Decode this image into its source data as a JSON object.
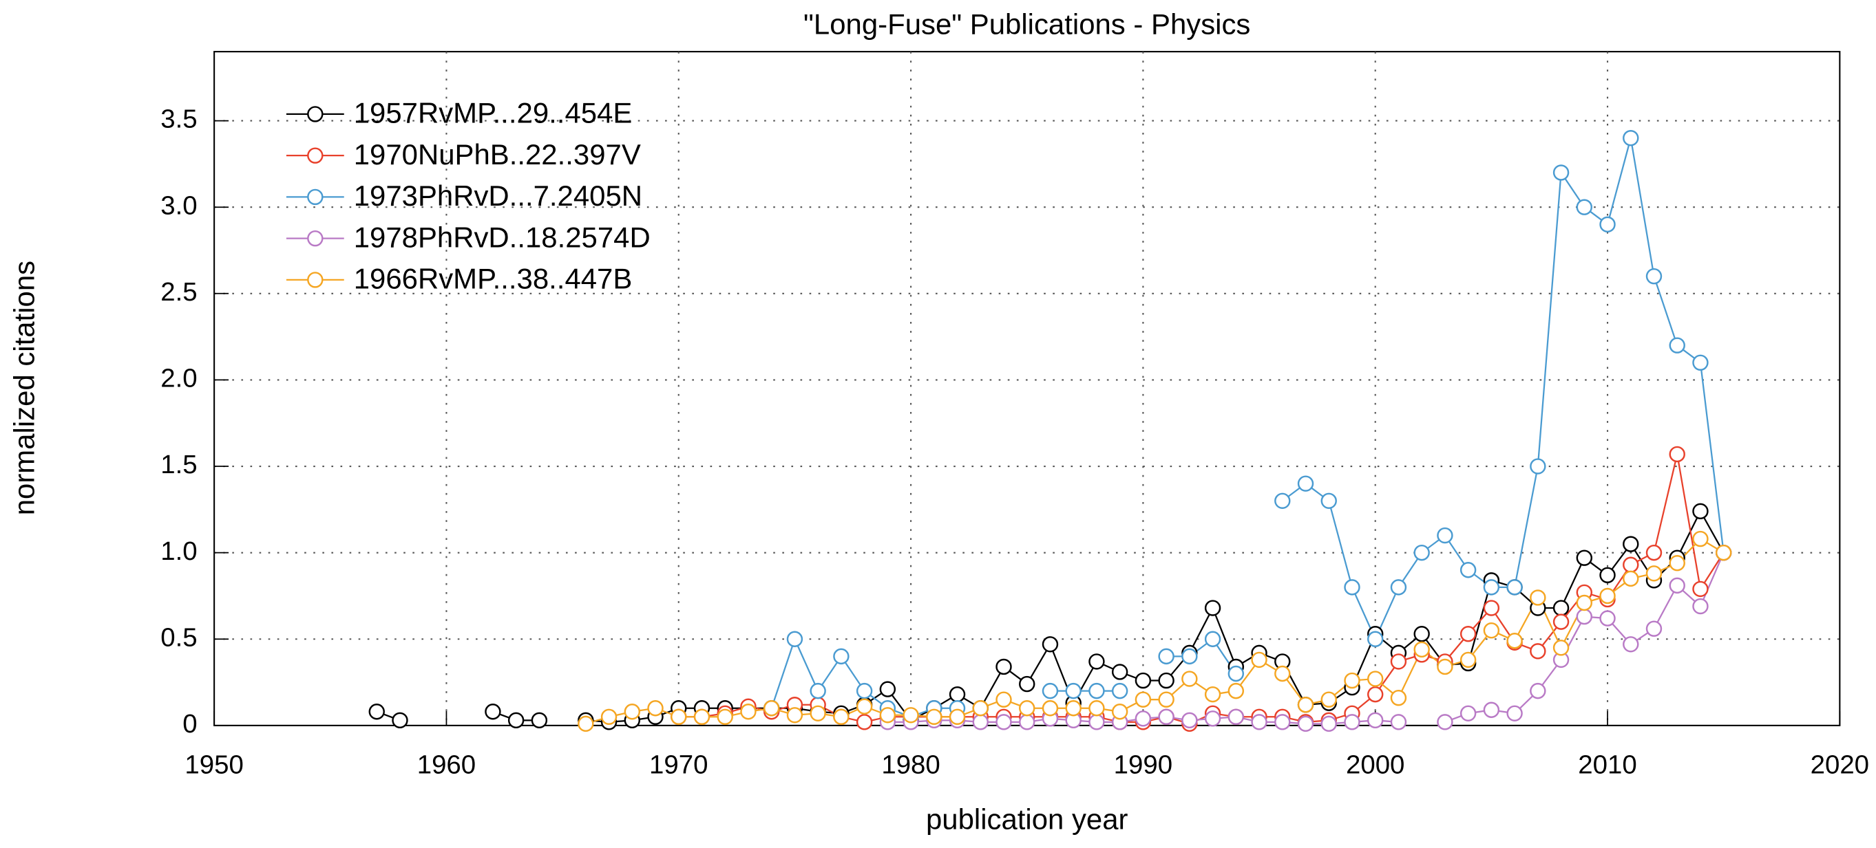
{
  "chart_data": {
    "type": "line",
    "title": "\"Long-Fuse\" Publications - Physics",
    "x_label": "publication year",
    "y_label": "normalized citations",
    "x": [
      1957,
      1958,
      1959,
      1960,
      1961,
      1962,
      1963,
      1964,
      1965,
      1966,
      1967,
      1968,
      1969,
      1970,
      1971,
      1972,
      1973,
      1974,
      1975,
      1976,
      1977,
      1978,
      1979,
      1980,
      1981,
      1982,
      1983,
      1984,
      1985,
      1986,
      1987,
      1988,
      1989,
      1990,
      1991,
      1992,
      1993,
      1994,
      1995,
      1996,
      1997,
      1998,
      1999,
      2000,
      2001,
      2002,
      2003,
      2004,
      2005,
      2006,
      2007,
      2008,
      2009,
      2010,
      2011,
      2012,
      2013,
      2014,
      2015
    ],
    "series": [
      {
        "name": "1957RvMP...29..454E",
        "color": "#000000",
        "values": [
          0.08,
          0.03,
          null,
          null,
          null,
          0.08,
          0.03,
          0.03,
          null,
          0.03,
          0.02,
          0.03,
          0.05,
          0.1,
          0.1,
          0.1,
          0.1,
          0.1,
          0.1,
          0.08,
          0.07,
          0.12,
          0.21,
          0.03,
          0.1,
          0.18,
          0.1,
          0.34,
          0.24,
          0.47,
          0.13,
          0.37,
          0.31,
          0.26,
          0.26,
          0.42,
          0.68,
          0.34,
          0.42,
          0.37,
          0.12,
          0.13,
          0.22,
          0.53,
          0.42,
          0.53,
          0.35,
          0.36,
          0.84,
          0.8,
          0.68,
          0.68,
          0.97,
          0.87,
          1.05,
          0.84,
          0.97,
          1.24,
          1.0
        ]
      },
      {
        "name": "1970NuPhB..22..397V",
        "color": "#e8412b",
        "values": [
          null,
          null,
          null,
          null,
          null,
          null,
          null,
          null,
          null,
          null,
          null,
          null,
          null,
          0.05,
          0.05,
          0.07,
          0.11,
          0.08,
          0.12,
          0.12,
          0.05,
          0.02,
          0.05,
          0.05,
          0.05,
          0.05,
          0.05,
          0.05,
          0.05,
          0.05,
          0.05,
          0.05,
          0.02,
          0.02,
          0.05,
          0.01,
          0.07,
          0.05,
          0.05,
          0.05,
          0.02,
          0.03,
          0.07,
          0.18,
          0.37,
          0.41,
          0.37,
          0.53,
          0.68,
          0.48,
          0.43,
          0.6,
          0.77,
          0.73,
          0.93,
          1.0,
          1.57,
          0.79,
          1.0
        ]
      },
      {
        "name": "1973PhRvD...7.2405N",
        "color": "#4a9bd1",
        "values": [
          null,
          null,
          null,
          null,
          null,
          null,
          null,
          null,
          null,
          null,
          null,
          null,
          null,
          null,
          null,
          null,
          null,
          0.1,
          0.5,
          0.2,
          0.4,
          0.2,
          0.1,
          0.05,
          0.1,
          0.1,
          null,
          null,
          null,
          0.2,
          0.2,
          0.2,
          0.2,
          null,
          0.4,
          0.4,
          0.5,
          0.3,
          null,
          1.3,
          1.4,
          1.3,
          0.8,
          0.5,
          0.8,
          1.0,
          1.1,
          0.9,
          0.8,
          0.8,
          1.5,
          3.2,
          3.0,
          2.9,
          3.4,
          2.6,
          2.2,
          2.1,
          1.0
        ]
      },
      {
        "name": "1978PhRvD..18.2574D",
        "color": "#b97ac6",
        "values": [
          null,
          null,
          null,
          null,
          null,
          null,
          null,
          null,
          null,
          null,
          null,
          null,
          null,
          null,
          null,
          null,
          null,
          null,
          null,
          null,
          null,
          null,
          0.02,
          0.02,
          0.03,
          0.03,
          0.02,
          0.02,
          0.02,
          0.04,
          0.03,
          0.02,
          0.02,
          0.04,
          0.05,
          0.03,
          0.04,
          0.05,
          0.02,
          0.02,
          0.01,
          0.01,
          0.02,
          0.03,
          0.02,
          null,
          0.02,
          0.07,
          0.09,
          0.07,
          0.2,
          0.38,
          0.63,
          0.62,
          0.47,
          0.56,
          0.81,
          0.69,
          1.0
        ]
      },
      {
        "name": "1966RvMP...38..447B",
        "color": "#f5a623",
        "values": [
          null,
          null,
          null,
          null,
          null,
          null,
          null,
          null,
          null,
          0.01,
          0.05,
          0.08,
          0.1,
          0.05,
          0.05,
          0.05,
          0.08,
          0.1,
          0.06,
          0.07,
          0.05,
          0.11,
          0.06,
          0.06,
          0.05,
          0.05,
          0.1,
          0.15,
          0.1,
          0.1,
          0.1,
          0.1,
          0.08,
          0.15,
          0.15,
          0.27,
          0.18,
          0.2,
          0.38,
          0.3,
          0.12,
          0.15,
          0.26,
          0.27,
          0.16,
          0.44,
          0.34,
          0.38,
          0.55,
          0.49,
          0.74,
          0.45,
          0.71,
          0.75,
          0.85,
          0.88,
          0.94,
          1.08,
          1.0
        ]
      }
    ],
    "xlim": [
      1950,
      2020
    ],
    "xticks": [
      1950,
      1960,
      1970,
      1980,
      1990,
      2000,
      2010,
      2020
    ],
    "ylim": [
      0,
      3.9
    ],
    "yticks": [
      0,
      0.5,
      {
        "value": 1,
        "label": "1.0"
      },
      1.5,
      {
        "value": 2,
        "label": "2.0"
      },
      2.5,
      {
        "value": 3,
        "label": "3.0"
      },
      3.5
    ],
    "grid": true,
    "legend": "upper left"
  }
}
